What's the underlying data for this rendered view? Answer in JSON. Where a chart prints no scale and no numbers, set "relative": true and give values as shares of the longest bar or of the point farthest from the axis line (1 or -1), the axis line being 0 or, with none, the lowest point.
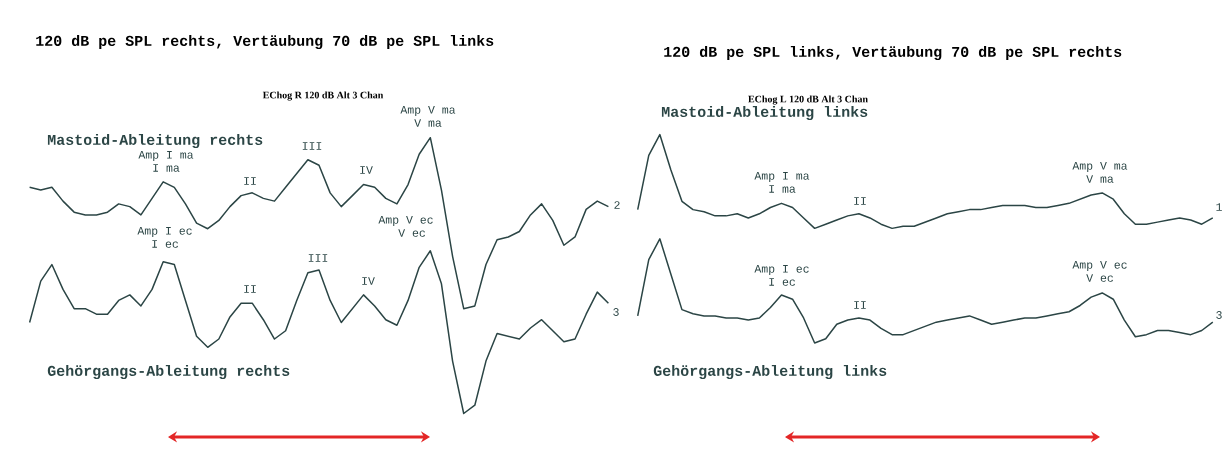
{
  "chart_data": [
    {
      "type": "line",
      "title": "120 dB pe SPL rechts, Vertäubung 70 dB pe SPL links",
      "subtitle": "EChog R 120 dB Alt 3 Chan",
      "relative": true,
      "categories": [
        null,
        null,
        null,
        null,
        null,
        null,
        null,
        null,
        null,
        null,
        null,
        null,
        null,
        null,
        null,
        null,
        null,
        null,
        null,
        null,
        null,
        null,
        null,
        null,
        null,
        null,
        null,
        null,
        null,
        null,
        null,
        null,
        null,
        null,
        null,
        null,
        null,
        null,
        null,
        null,
        null,
        null,
        null,
        null,
        null,
        null,
        null,
        null,
        null,
        null,
        null,
        null,
        null
      ],
      "series": [
        {
          "name": "Mastoid-Ableitung rechts",
          "color": "#2b4545",
          "values": [
            0.82,
            0.81,
            0.82,
            0.77,
            0.73,
            0.72,
            0.72,
            0.73,
            0.76,
            0.75,
            0.72,
            0.78,
            0.84,
            0.82,
            0.76,
            0.69,
            0.67,
            0.7,
            0.75,
            0.79,
            0.8,
            0.78,
            0.77,
            0.82,
            0.87,
            0.92,
            0.9,
            0.8,
            0.75,
            0.79,
            0.83,
            0.82,
            0.78,
            0.76,
            0.83,
            0.94,
            1.0,
            0.81,
            0.57,
            0.38,
            0.39,
            0.54,
            0.63,
            0.64,
            0.66,
            0.72,
            0.76,
            0.7,
            0.61,
            0.64,
            0.74,
            0.77,
            0.75
          ]
        },
        {
          "name": "Gehörgangs-Ableitung rechts",
          "color": "#2b4545",
          "values": [
            0.33,
            0.48,
            0.54,
            0.45,
            0.38,
            0.38,
            0.36,
            0.36,
            0.41,
            0.43,
            0.39,
            0.45,
            0.55,
            0.54,
            0.41,
            0.28,
            0.24,
            0.27,
            0.35,
            0.4,
            0.4,
            0.34,
            0.27,
            0.3,
            0.41,
            0.51,
            0.52,
            0.41,
            0.33,
            0.38,
            0.43,
            0.39,
            0.34,
            0.32,
            0.41,
            0.53,
            0.59,
            0.47,
            0.19,
            0.0,
            0.03,
            0.19,
            0.29,
            0.28,
            0.27,
            0.31,
            0.34,
            0.3,
            0.26,
            0.27,
            0.36,
            0.44,
            0.4
          ]
        }
      ],
      "annotations": [
        "Amp I ma",
        "I ma",
        "II",
        "III",
        "IV",
        "Amp V ma",
        "V ma",
        "Amp I ec",
        "I ec",
        "II",
        "III",
        "IV",
        "Amp V ec",
        "V ec",
        "2",
        "3"
      ]
    },
    {
      "type": "line",
      "title": "120 dB pe SPL links, Vertäubung 70 dB pe SPL rechts",
      "subtitle": "EChog L 120 dB Alt 3 Chan",
      "relative": true,
      "categories": [
        null,
        null,
        null,
        null,
        null,
        null,
        null,
        null,
        null,
        null,
        null,
        null,
        null,
        null,
        null,
        null,
        null,
        null,
        null,
        null,
        null,
        null,
        null,
        null,
        null,
        null,
        null,
        null,
        null,
        null,
        null,
        null,
        null,
        null,
        null,
        null,
        null,
        null,
        null,
        null,
        null,
        null,
        null,
        null,
        null,
        null,
        null,
        null,
        null,
        null,
        null,
        null,
        null
      ],
      "series": [
        {
          "name": "Mastoid-Ableitung links",
          "color": "#2b4545",
          "values": [
            0.64,
            0.9,
            1.0,
            0.83,
            0.68,
            0.64,
            0.63,
            0.61,
            0.61,
            0.62,
            0.6,
            0.62,
            0.65,
            0.67,
            0.65,
            0.6,
            0.55,
            0.57,
            0.59,
            0.61,
            0.62,
            0.6,
            0.57,
            0.55,
            0.56,
            0.56,
            0.58,
            0.6,
            0.62,
            0.63,
            0.64,
            0.64,
            0.65,
            0.66,
            0.66,
            0.66,
            0.65,
            0.65,
            0.66,
            0.67,
            0.69,
            0.71,
            0.72,
            0.69,
            0.62,
            0.57,
            0.57,
            0.58,
            0.59,
            0.6,
            0.59,
            0.57,
            0.6
          ]
        },
        {
          "name": "Gehörgangs-Ableitung links",
          "color": "#2b4545",
          "values": [
            0.13,
            0.4,
            0.5,
            0.33,
            0.16,
            0.14,
            0.13,
            0.13,
            0.12,
            0.12,
            0.11,
            0.12,
            0.17,
            0.23,
            0.21,
            0.12,
            0.0,
            0.02,
            0.09,
            0.11,
            0.12,
            0.11,
            0.07,
            0.04,
            0.04,
            0.06,
            0.08,
            0.1,
            0.11,
            0.12,
            0.13,
            0.11,
            0.09,
            0.1,
            0.11,
            0.12,
            0.12,
            0.13,
            0.14,
            0.15,
            0.18,
            0.22,
            0.24,
            0.21,
            0.11,
            0.03,
            0.04,
            0.06,
            0.06,
            0.05,
            0.04,
            0.06,
            0.1
          ]
        }
      ],
      "annotations": [
        "Amp I ma",
        "I ma",
        "II",
        "Amp V ma",
        "V ma",
        "Amp I ec",
        "I ec",
        "II",
        "Amp V ec",
        "V ec",
        "1",
        "3"
      ]
    }
  ]
}
